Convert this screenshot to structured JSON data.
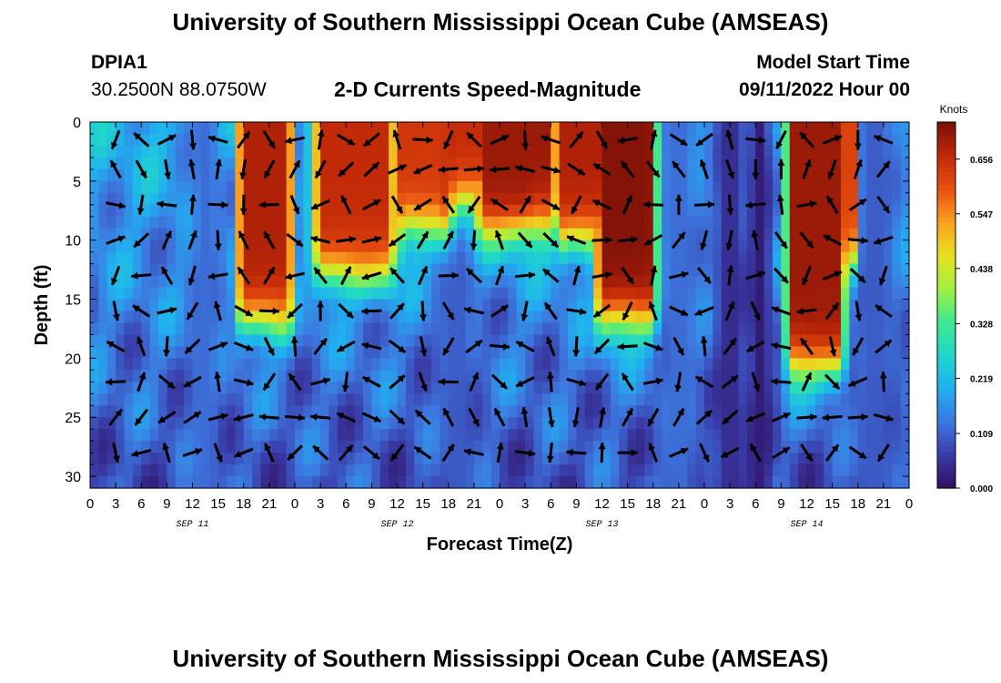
{
  "header": {
    "title": "University of Southern Mississippi Ocean Cube (AMSEAS)",
    "station": "DPIA1",
    "coords": "30.2500N  88.0750W",
    "subtitle": "2-D Currents Speed-Magnitude",
    "model_start_label": "Model Start Time",
    "model_start_value": "09/11/2022 Hour 00"
  },
  "footer": {
    "title": "University of Southern Mississippi Ocean Cube (AMSEAS)"
  },
  "chart_data": {
    "type": "heatmap",
    "xlabel": "Forecast Time(Z)",
    "ylabel": "Depth (ft)",
    "x_tick_labels": [
      "0",
      "3",
      "6",
      "9",
      "12",
      "15",
      "18",
      "21",
      "0",
      "3",
      "6",
      "9",
      "12",
      "15",
      "18",
      "21",
      "0",
      "3",
      "6",
      "9",
      "12",
      "15",
      "18",
      "21",
      "0",
      "3",
      "6",
      "9",
      "12",
      "15",
      "18",
      "21",
      "0"
    ],
    "date_labels": [
      {
        "label": "SEP 11",
        "hour": 12
      },
      {
        "label": "SEP 12",
        "hour": 36
      },
      {
        "label": "SEP 13",
        "hour": 60
      },
      {
        "label": "SEP 14",
        "hour": 84
      }
    ],
    "x_range_hours": [
      0,
      96
    ],
    "y_ticks": [
      0,
      5,
      10,
      15,
      20,
      25,
      30
    ],
    "y_range_ft": [
      0,
      31
    ],
    "y_inverted": true,
    "colorbar": {
      "label": "Knots",
      "ticks": [
        "0.000",
        "0.109",
        "0.219",
        "0.328",
        "0.438",
        "0.547",
        "0.656"
      ],
      "range": [
        0,
        0.73
      ],
      "colors": [
        "#301060",
        "#3a3ca8",
        "#3d78e0",
        "#20b0f0",
        "#20d8c8",
        "#40e890",
        "#a0f040",
        "#e8e020",
        "#f8a020",
        "#e85010",
        "#c02808",
        "#7a1008"
      ]
    },
    "speed_model": {
      "units": "knots",
      "surface_jets": [
        {
          "start_hour": 17.5,
          "end_hour": 23.5,
          "bottom_ft": 17,
          "speed": 0.68
        },
        {
          "start_hour": 26,
          "end_hour": 36,
          "bottom_ft": 13,
          "speed": 0.66
        },
        {
          "start_hour": 36,
          "end_hour": 42,
          "bottom_ft": 9,
          "speed": 0.64
        },
        {
          "start_hour": 40,
          "end_hour": 52,
          "bottom_ft": 7,
          "speed": 0.66
        },
        {
          "start_hour": 45,
          "end_hour": 55,
          "bottom_ft": 9,
          "speed": 0.7
        },
        {
          "start_hour": 55,
          "end_hour": 61,
          "bottom_ft": 10,
          "speed": 0.68
        },
        {
          "start_hour": 59.5,
          "end_hour": 66,
          "bottom_ft": 17,
          "speed": 0.72
        },
        {
          "start_hour": 82,
          "end_hour": 88,
          "bottom_ft": 21,
          "speed": 0.7
        },
        {
          "start_hour": 86,
          "end_hour": 89.5,
          "bottom_ft": 12,
          "speed": 0.62
        }
      ],
      "slow_columns": [
        {
          "center_hour": 13.5,
          "half_width": 2,
          "speed": 0.12
        },
        {
          "center_hour": 43,
          "half_width": 2.5,
          "speed": 0.1
        },
        {
          "center_hour": 69,
          "half_width": 2.5,
          "speed": 0.12
        },
        {
          "center_hour": 75,
          "half_width": 2,
          "speed": 0.04
        },
        {
          "center_hour": 78.5,
          "half_width": 1.5,
          "speed": 0.02
        },
        {
          "center_hour": 92,
          "half_width": 3,
          "speed": 0.1
        }
      ]
    },
    "vector_grid": {
      "columns_every_hours": 3,
      "row_depths_ft": [
        1.5,
        4,
        7,
        10,
        13,
        16,
        19,
        22,
        25,
        28
      ]
    }
  }
}
